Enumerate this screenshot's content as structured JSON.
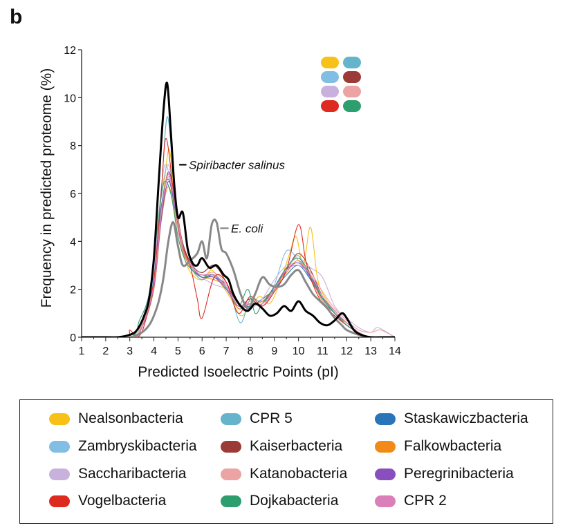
{
  "panel_label": "b",
  "colors": {
    "Nealsonbacteria": "#f7c11a",
    "CPR 5": "#66b3cc",
    "Staskawiczbacteria": "#2a74b8",
    "Zambryskibacteria": "#82bde3",
    "Kaiserbacteria": "#9b3a37",
    "Falkowbacteria": "#f28a17",
    "Saccharibacteria": "#c9b1dd",
    "Katanobacteria": "#eba3a3",
    "Peregrinibacteria": "#8a4fbf",
    "Vogelbacteria": "#dd2b1f",
    "Dojkabacteria": "#2e9e6e",
    "CPR 2": "#db7fb8",
    "Spiribacter salinus": "#000000",
    "E. coli": "#888888"
  },
  "legend": {
    "items": [
      "Nealsonbacteria",
      "CPR 5",
      "Staskawiczbacteria",
      "Zambryskibacteria",
      "Kaiserbacteria",
      "Falkowbacteria",
      "Saccharibacteria",
      "Katanobacteria",
      "Peregrinibacteria",
      "Vogelbacteria",
      "Dojkabacteria",
      "CPR 2"
    ]
  },
  "chart_data": {
    "type": "line",
    "xlabel": "Predicted Isoelectric Points (pI)",
    "ylabel": "Frequency in predicted proteome (%)",
    "xlim": [
      1,
      14
    ],
    "ylim": [
      0,
      12
    ],
    "xticks": [
      1,
      2,
      3,
      4,
      5,
      6,
      7,
      8,
      9,
      10,
      11,
      12,
      13,
      14
    ],
    "yticks": [
      0,
      2,
      4,
      6,
      8,
      10,
      12
    ],
    "grid": false,
    "legend_position": "bottom",
    "inset_legend_position": "top-right",
    "annotations": [
      "Spiribacter salinus",
      "E. coli"
    ],
    "series": [
      {
        "name": "Spiribacter salinus",
        "x": [
          1,
          2,
          2.5,
          3,
          3.3,
          3.6,
          3.8,
          4,
          4.2,
          4.4,
          4.55,
          4.7,
          4.85,
          5,
          5.2,
          5.4,
          5.6,
          5.8,
          6,
          6.3,
          6.6,
          6.9,
          7.1,
          7.3,
          7.6,
          7.9,
          8.2,
          8.5,
          8.8,
          9.1,
          9.4,
          9.7,
          10,
          10.3,
          10.6,
          10.9,
          11.2,
          11.5,
          11.8,
          12,
          12.3,
          12.6,
          13,
          13.5,
          14
        ],
        "y": [
          0,
          0,
          0,
          0.1,
          0.3,
          0.9,
          1.6,
          3.3,
          6.5,
          9.5,
          10.6,
          8.6,
          6.3,
          5,
          5.2,
          3.7,
          3.1,
          3,
          3.3,
          2.9,
          3,
          2.6,
          2.4,
          1.8,
          1.3,
          1.1,
          1.4,
          1.2,
          0.9,
          1,
          1.3,
          1.1,
          1.5,
          1.1,
          0.9,
          0.6,
          0.5,
          0.7,
          1,
          0.8,
          0.3,
          0.1,
          0,
          0,
          0
        ]
      },
      {
        "name": "E. coli",
        "x": [
          1,
          2,
          3,
          3.5,
          3.8,
          4,
          4.2,
          4.4,
          4.6,
          4.8,
          5,
          5.2,
          5.5,
          5.8,
          6,
          6.2,
          6.4,
          6.6,
          6.8,
          7,
          7.3,
          7.6,
          7.9,
          8.2,
          8.5,
          8.8,
          9.1,
          9.4,
          9.7,
          10,
          10.3,
          10.6,
          10.9,
          11.2,
          11.5,
          11.8,
          12,
          12.5,
          13,
          14
        ],
        "y": [
          0,
          0,
          0,
          0.2,
          0.5,
          0.9,
          1.5,
          2.5,
          4,
          4.8,
          3.8,
          3,
          3.2,
          3.5,
          4,
          3.3,
          4.7,
          4.8,
          3.7,
          3.5,
          2.8,
          1.8,
          1.2,
          1.8,
          2.5,
          2.2,
          2.1,
          2.2,
          2.6,
          2.8,
          2.3,
          1.8,
          1.5,
          1.2,
          0.8,
          0.5,
          0.3,
          0.1,
          0,
          0
        ]
      },
      {
        "name": "Nealsonbacteria",
        "x": [
          1,
          3,
          3.5,
          4,
          4.3,
          4.6,
          4.8,
          5,
          5.3,
          5.6,
          6,
          6.4,
          6.8,
          7.2,
          7.6,
          8,
          8.4,
          8.8,
          9.2,
          9.6,
          9.9,
          10.2,
          10.5,
          10.8,
          11.2,
          11.6,
          12,
          12.5,
          13,
          14
        ],
        "y": [
          0,
          0,
          0.6,
          2.2,
          5,
          7.8,
          6.5,
          4.5,
          3.2,
          2.6,
          2.4,
          2.8,
          2.2,
          1.6,
          0.9,
          1.3,
          1.7,
          1.4,
          2.2,
          3.4,
          4.2,
          3,
          4.6,
          2.4,
          1.5,
          1,
          0.5,
          0.2,
          0,
          0
        ]
      },
      {
        "name": "CPR 5",
        "x": [
          1,
          3,
          3.5,
          4,
          4.3,
          4.55,
          4.8,
          5,
          5.3,
          5.6,
          6,
          6.4,
          6.8,
          7.2,
          7.6,
          8,
          8.4,
          8.8,
          9.2,
          9.6,
          10,
          10.4,
          10.8,
          11.2,
          11.6,
          12,
          12.5,
          13,
          14
        ],
        "y": [
          0,
          0,
          0.5,
          2.5,
          6,
          9.2,
          6.8,
          4.8,
          3.6,
          2.8,
          2.4,
          2.6,
          2.3,
          1.7,
          0.6,
          1.6,
          1.5,
          1.6,
          2.4,
          3,
          3.4,
          2.6,
          1.9,
          1.4,
          0.9,
          0.5,
          0.2,
          0,
          0
        ]
      },
      {
        "name": "Staskawiczbacteria",
        "x": [
          1,
          3,
          3.5,
          4,
          4.3,
          4.6,
          4.9,
          5.2,
          5.6,
          6,
          6.5,
          7,
          7.5,
          8,
          8.5,
          9,
          9.5,
          10,
          10.5,
          11,
          11.5,
          12,
          12.5,
          13,
          14
        ],
        "y": [
          0,
          0,
          0.4,
          2.4,
          5.4,
          6.6,
          5.2,
          3.8,
          2.8,
          2.6,
          2.5,
          2.2,
          1.4,
          1.3,
          1.6,
          2,
          2.6,
          3,
          2.4,
          1.6,
          1,
          0.6,
          0.2,
          0,
          0
        ]
      },
      {
        "name": "Zambryskibacteria",
        "x": [
          1,
          3,
          3.5,
          4,
          4.3,
          4.6,
          4.9,
          5.2,
          5.6,
          6,
          6.5,
          7,
          7.5,
          8,
          8.5,
          9,
          9.5,
          10,
          10.5,
          11,
          11.5,
          12,
          12.5,
          13,
          14
        ],
        "y": [
          0,
          0,
          0.5,
          2.6,
          5.8,
          7.2,
          5.4,
          3.6,
          2.9,
          2.5,
          2.6,
          2.1,
          1.2,
          1.5,
          1.4,
          2.2,
          3.6,
          3.2,
          2.6,
          1.6,
          1,
          0.5,
          0.2,
          0,
          0
        ]
      },
      {
        "name": "Kaiserbacteria",
        "x": [
          1,
          3,
          3.5,
          4,
          4.3,
          4.6,
          4.9,
          5.2,
          5.6,
          6,
          6.5,
          7,
          7.5,
          8,
          8.5,
          9,
          9.5,
          10,
          10.5,
          11,
          11.5,
          12,
          12.5,
          13,
          14
        ],
        "y": [
          0,
          0,
          0.4,
          2.2,
          5,
          6.9,
          5.6,
          3.9,
          3,
          2.7,
          3,
          2.3,
          1.3,
          1.6,
          1.3,
          2,
          2.8,
          3.5,
          2.8,
          1.7,
          1.1,
          0.6,
          0.2,
          0,
          0
        ]
      },
      {
        "name": "Falkowbacteria",
        "x": [
          1,
          3,
          3.5,
          4,
          4.3,
          4.6,
          4.9,
          5.2,
          5.6,
          6,
          6.5,
          7,
          7.5,
          8,
          8.5,
          9,
          9.5,
          10,
          10.5,
          11,
          11.5,
          12,
          12.5,
          13,
          14
        ],
        "y": [
          0,
          0,
          0.4,
          2,
          4.8,
          6.3,
          5,
          3.6,
          2.8,
          2.5,
          2.4,
          2.1,
          1.2,
          1.4,
          1.5,
          2.1,
          2.7,
          3.2,
          2.5,
          1.5,
          1,
          0.5,
          0.2,
          0,
          0
        ]
      },
      {
        "name": "Saccharibacteria",
        "x": [
          1,
          3,
          3.5,
          4,
          4.3,
          4.5,
          4.8,
          5.1,
          5.5,
          6,
          6.5,
          7,
          7.5,
          8,
          8.5,
          9,
          9.5,
          10,
          10.5,
          11,
          11.5,
          12,
          12.5,
          13,
          13.3,
          14
        ],
        "y": [
          0,
          0,
          0.7,
          2.9,
          6.2,
          7.2,
          5.9,
          4,
          3.1,
          2.5,
          2.2,
          2,
          1.4,
          1.2,
          1.6,
          2.4,
          3,
          3.3,
          2.9,
          2.5,
          1.3,
          0.8,
          0.4,
          0.2,
          0.4,
          0
        ]
      },
      {
        "name": "Katanobacteria",
        "x": [
          1,
          3,
          3.5,
          4,
          4.3,
          4.6,
          4.9,
          5.2,
          5.6,
          6,
          6.5,
          7,
          7.5,
          8,
          8.5,
          9,
          9.5,
          10,
          10.5,
          11,
          11.5,
          12,
          12.5,
          13,
          13.4,
          14
        ],
        "y": [
          0,
          0,
          0.5,
          2.3,
          5.2,
          6.7,
          5.5,
          3.8,
          2.9,
          2.6,
          2.7,
          2.2,
          1.3,
          1.5,
          1.3,
          2,
          2.9,
          3.1,
          2.7,
          1.9,
          1.2,
          0.7,
          0.3,
          0.2,
          0.3,
          0
        ]
      },
      {
        "name": "Peregrinibacteria",
        "x": [
          1,
          3,
          3.5,
          4,
          4.3,
          4.6,
          4.9,
          5.2,
          5.6,
          6,
          6.5,
          7,
          7.5,
          8,
          8.5,
          9,
          9.5,
          10,
          10.5,
          11,
          11.5,
          12,
          12.5,
          13,
          14
        ],
        "y": [
          0,
          0,
          0.4,
          2.1,
          4.9,
          6.5,
          5.3,
          3.7,
          2.9,
          2.5,
          2.5,
          2,
          1.3,
          1.4,
          1.4,
          2.1,
          2.8,
          3.1,
          2.5,
          1.6,
          1,
          0.5,
          0.2,
          0,
          0
        ]
      },
      {
        "name": "Vogelbacteria",
        "x": [
          1,
          2.8,
          3,
          3.3,
          3.6,
          4,
          4.3,
          4.5,
          4.8,
          5.1,
          5.5,
          5.8,
          6,
          6.5,
          7,
          7.5,
          8,
          8.5,
          9,
          9.5,
          10,
          10.3,
          10.6,
          11,
          11.5,
          12,
          12.5,
          13,
          14
        ],
        "y": [
          0,
          0,
          0.3,
          0,
          0.5,
          2.4,
          6,
          8.3,
          6.2,
          4.1,
          3,
          1.6,
          0.8,
          2.5,
          2.3,
          1,
          1.7,
          1.3,
          1.9,
          2.8,
          4.7,
          3.2,
          2.2,
          1.4,
          0.9,
          0.5,
          0.2,
          0,
          0
        ]
      },
      {
        "name": "Dojkabacteria",
        "x": [
          1,
          3,
          3.4,
          3.8,
          4.1,
          4.4,
          4.7,
          5,
          5.3,
          5.6,
          6,
          6.5,
          7,
          7.5,
          7.9,
          8.2,
          8.5,
          9,
          9.5,
          10,
          10.5,
          11,
          11.5,
          12,
          12.5,
          13,
          14
        ],
        "y": [
          0,
          0,
          0.7,
          1.8,
          4.2,
          6.4,
          6,
          4.2,
          3.2,
          2.8,
          2.5,
          2.6,
          2.1,
          1.3,
          2,
          1,
          1.4,
          2.1,
          2.9,
          3.3,
          2.6,
          1.6,
          1,
          0.5,
          0.2,
          0,
          0
        ]
      },
      {
        "name": "CPR 2",
        "x": [
          1,
          3,
          3.5,
          4,
          4.3,
          4.6,
          4.9,
          5.2,
          5.6,
          6,
          6.5,
          7,
          7.5,
          8,
          8.5,
          9,
          9.5,
          10,
          10.5,
          11,
          11.5,
          12,
          12.5,
          13,
          14
        ],
        "y": [
          0,
          0,
          0.4,
          2.2,
          5.1,
          6.8,
          5.4,
          3.7,
          2.9,
          2.6,
          2.6,
          2.1,
          1.3,
          1.4,
          1.4,
          2,
          2.8,
          3,
          2.6,
          1.7,
          1.1,
          0.6,
          0.2,
          0,
          0
        ]
      }
    ]
  }
}
